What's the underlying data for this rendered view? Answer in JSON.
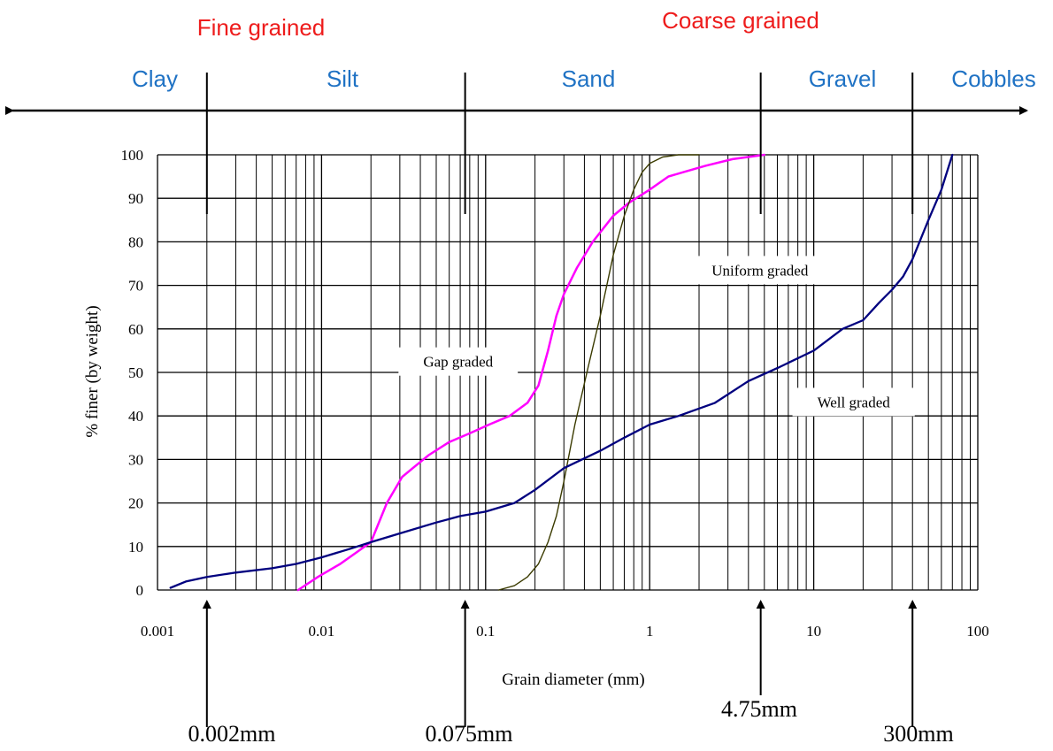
{
  "classes": {
    "fine": "Fine grained",
    "coarse": "Coarse grained"
  },
  "soil_types": [
    {
      "label": "Clay"
    },
    {
      "label": "Silt"
    },
    {
      "label": "Sand"
    },
    {
      "label": "Gravel"
    },
    {
      "label": "Cobbles"
    }
  ],
  "boundary_labels": [
    {
      "text": "0.002mm",
      "x": 0.002
    },
    {
      "text": "0.075mm",
      "x": 0.075
    },
    {
      "text": "4.75mm",
      "x": 4.75
    },
    {
      "text": "300mm",
      "x": 40
    }
  ],
  "colors": {
    "fine": "#ee1c1c",
    "soil": "#1f72c4",
    "gap": "#ff00ff",
    "well": "#00007f",
    "uniform": "#3b3b00"
  },
  "chart_data": {
    "type": "line",
    "xscale": "log",
    "xlim": [
      0.001,
      100
    ],
    "ylim": [
      0,
      100
    ],
    "xlabel": "Grain diameter (mm)",
    "ylabel": "% finer (by weight)",
    "xticks": [
      {
        "value": 0.001,
        "label": "0.001"
      },
      {
        "value": 0.01,
        "label": "0.01"
      },
      {
        "value": 0.1,
        "label": "0.1"
      },
      {
        "value": 1,
        "label": "1"
      },
      {
        "value": 10,
        "label": "10"
      },
      {
        "value": 100,
        "label": "100"
      }
    ],
    "yticks": [
      {
        "value": 0,
        "label": "0"
      },
      {
        "value": 10,
        "label": "10"
      },
      {
        "value": 20,
        "label": "20"
      },
      {
        "value": 30,
        "label": "30"
      },
      {
        "value": 40,
        "label": "40"
      },
      {
        "value": 50,
        "label": "50"
      },
      {
        "value": 60,
        "label": "60"
      },
      {
        "value": 70,
        "label": "70"
      },
      {
        "value": 80,
        "label": "80"
      },
      {
        "value": 90,
        "label": "90"
      },
      {
        "value": 100,
        "label": "100"
      }
    ],
    "grid": true,
    "annotations": [
      {
        "text": "Gap graded",
        "x": 0.068,
        "y": 52.5
      },
      {
        "text": "Uniform graded",
        "x": 4.7,
        "y": 73.5
      },
      {
        "text": "Well graded",
        "x": 17.5,
        "y": 43.2
      }
    ],
    "series": [
      {
        "key": "gap",
        "x": [
          0.0072,
          0.0095,
          0.013,
          0.02,
          0.025,
          0.031,
          0.036,
          0.045,
          0.06,
          0.08,
          0.105,
          0.14,
          0.18,
          0.21,
          0.24,
          0.27,
          0.3,
          0.36,
          0.45,
          0.6,
          0.75,
          1.0,
          1.3,
          1.6,
          2.2,
          3.2,
          5.0
        ],
        "y": [
          0,
          3,
          6,
          11,
          20,
          26,
          28,
          31,
          34,
          36,
          38,
          40,
          43,
          47,
          55,
          63,
          68,
          74,
          80,
          86,
          89,
          92,
          95,
          96,
          97.5,
          99,
          100
        ]
      },
      {
        "key": "uniform",
        "x": [
          0.12,
          0.15,
          0.18,
          0.21,
          0.24,
          0.27,
          0.3,
          0.35,
          0.42,
          0.5,
          0.6,
          0.7,
          0.8,
          0.9,
          1.0,
          1.2,
          1.5,
          2.0
        ],
        "y": [
          0,
          1,
          3,
          6,
          11,
          17,
          25,
          38,
          51,
          63,
          77,
          86,
          92,
          96,
          98,
          99.5,
          100,
          100
        ]
      },
      {
        "key": "well",
        "x": [
          0.0012,
          0.0015,
          0.002,
          0.003,
          0.005,
          0.007,
          0.01,
          0.015,
          0.02,
          0.03,
          0.05,
          0.07,
          0.1,
          0.15,
          0.2,
          0.3,
          0.5,
          0.7,
          1.0,
          1.5,
          2.5,
          4.0,
          6.0,
          10,
          15,
          20,
          25,
          30,
          35,
          40,
          50,
          60,
          70
        ],
        "y": [
          0.5,
          2,
          3,
          4,
          5,
          6,
          7.5,
          9.5,
          11,
          13,
          15.5,
          17,
          18,
          20,
          23,
          28,
          32,
          35,
          38,
          40,
          43,
          48,
          51,
          55,
          60,
          62,
          66,
          69,
          72,
          76,
          85,
          92,
          100
        ]
      }
    ]
  }
}
